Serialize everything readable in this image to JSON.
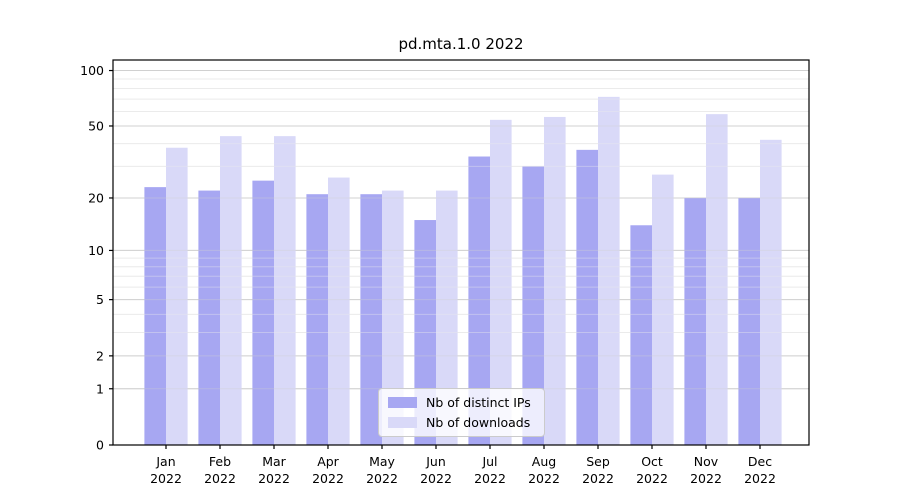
{
  "title": "pd.mta.1.0 2022",
  "chart_data": {
    "type": "bar",
    "scale": "log1p",
    "title": "pd.mta.1.0 2022",
    "xlabel": "",
    "ylabel": "",
    "categories": [
      "Jan",
      "Feb",
      "Mar",
      "Apr",
      "May",
      "Jun",
      "Jul",
      "Aug",
      "Sep",
      "Oct",
      "Nov",
      "Dec"
    ],
    "year_label": "2022",
    "series": [
      {
        "name": "Nb of distinct IPs",
        "color": "#a7a7f2",
        "values": [
          23,
          22,
          25,
          21,
          21,
          15,
          34,
          30,
          37,
          14,
          20,
          20
        ]
      },
      {
        "name": "Nb of downloads",
        "color": "#d9d9f8",
        "values": [
          38,
          44,
          44,
          26,
          22,
          22,
          54,
          56,
          72,
          27,
          58,
          42
        ]
      }
    ],
    "yticks": [
      0,
      1,
      2,
      5,
      10,
      20,
      50,
      100
    ],
    "yticks_minor": [
      3,
      4,
      6,
      7,
      8,
      9,
      30,
      40,
      60,
      70,
      80,
      90
    ],
    "ylim": [
      0,
      114
    ],
    "grid": true,
    "legend_position": "lower center"
  },
  "colors": {
    "background": "#ffffff",
    "spine": "#000000",
    "grid_major": "#d0d0d0",
    "grid_minor": "#ececec",
    "tick_text": "#000000"
  }
}
